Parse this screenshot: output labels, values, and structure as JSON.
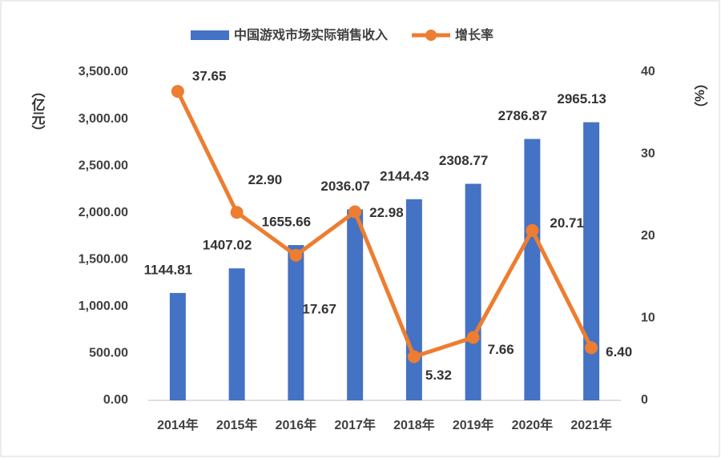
{
  "chart_data": {
    "type": "bar_line",
    "categories": [
      "2014年",
      "2015年",
      "2016年",
      "2017年",
      "2018年",
      "2019年",
      "2020年",
      "2021年"
    ],
    "series": [
      {
        "name": "中国游戏市场实际销售收入",
        "color": "#4472c4",
        "type": "bar",
        "values": [
          1144.81,
          1407.02,
          1655.66,
          2036.07,
          2144.43,
          2308.77,
          2786.87,
          2965.13
        ]
      },
      {
        "name": "增长率",
        "color": "#ed7d31",
        "type": "line",
        "axis": "y2",
        "values": [
          37.65,
          22.9,
          17.67,
          22.98,
          5.32,
          7.66,
          20.71,
          6.4
        ],
        "value_labels": [
          "37.65",
          "22.90",
          "17.67",
          "22.98",
          "5.32",
          "7.66",
          "20.71",
          "6.40"
        ]
      }
    ],
    "ylabel": "（亿元）",
    "y2label": "（%）",
    "ylim": [
      0,
      3500
    ],
    "yticks": [
      {
        "value": 0,
        "label": "0.00"
      },
      {
        "value": 500,
        "label": "500.00"
      },
      {
        "value": 1000,
        "label": "1,000.00"
      },
      {
        "value": 1500,
        "label": "1,500.00"
      },
      {
        "value": 2000,
        "label": "2,000.00"
      },
      {
        "value": 2500,
        "label": "2,500.00"
      },
      {
        "value": 3000,
        "label": "3,000.00"
      },
      {
        "value": 3500,
        "label": "3,500.00"
      }
    ],
    "y2lim": [
      0,
      40
    ],
    "y2ticks": [
      0,
      10,
      20,
      30,
      40
    ],
    "legend": "top"
  }
}
